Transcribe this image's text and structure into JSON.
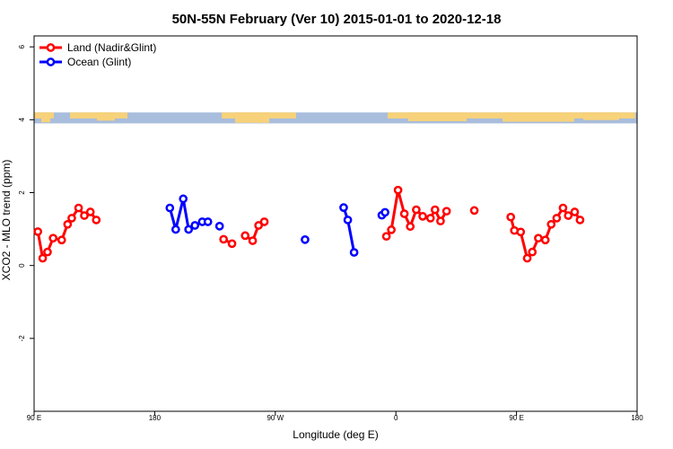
{
  "chart_data": {
    "type": "line",
    "title": "50N-55N February (Ver 10)   2015-01-01 to 2020-12-18",
    "xlabel": "Longitude (deg E)",
    "ylabel": "XCO2 - MLO trend (ppm)",
    "xlim": [
      90,
      540
    ],
    "ylim": [
      -4,
      6.3
    ],
    "x_ticks": [
      {
        "value": 90,
        "label": "90 E"
      },
      {
        "value": 180,
        "label": "180"
      },
      {
        "value": 270,
        "label": "90 W"
      },
      {
        "value": 360,
        "label": "0"
      },
      {
        "value": 450,
        "label": "90 E"
      },
      {
        "value": 540,
        "label": "180"
      }
    ],
    "y_ticks": [
      {
        "value": -2,
        "label": "-2"
      },
      {
        "value": 0,
        "label": "0"
      },
      {
        "value": 2,
        "label": "2"
      },
      {
        "value": 4,
        "label": "4"
      },
      {
        "value": 6,
        "label": "6"
      }
    ],
    "legend_position": "top-left",
    "land_ocean_strip": {
      "y_bottom": 3.9,
      "y_top": 4.2,
      "land_color": "#f7d27a",
      "ocean_color": "#a9bddc"
    },
    "series": [
      {
        "name": "Land (Nadir&Glint)",
        "color": "#ff0000",
        "segments": [
          [
            [
              92.8,
              0.93
            ],
            [
              96.4,
              0.2
            ],
            [
              100.0,
              0.37
            ],
            [
              104.2,
              0.75
            ],
            [
              110.6,
              0.7
            ],
            [
              115.0,
              1.13
            ],
            [
              118.1,
              1.3
            ],
            [
              123.2,
              1.58
            ],
            [
              127.5,
              1.37
            ],
            [
              132.0,
              1.47
            ],
            [
              136.4,
              1.25
            ]
          ],
          [
            [
              231.4,
              0.72
            ],
            [
              237.7,
              0.6
            ]
          ],
          [
            [
              247.5,
              0.82
            ],
            [
              253.1,
              0.68
            ],
            [
              257.5,
              1.1
            ],
            [
              261.8,
              1.2
            ]
          ],
          [
            [
              352.9,
              0.8
            ],
            [
              356.6,
              0.98
            ],
            [
              361.6,
              2.07
            ],
            [
              366.3,
              1.42
            ],
            [
              370.7,
              1.07
            ],
            [
              375.2,
              1.53
            ],
            [
              380.0,
              1.35
            ],
            [
              385.8,
              1.3
            ],
            [
              389.2,
              1.53
            ],
            [
              393.3,
              1.22
            ],
            [
              397.8,
              1.49
            ]
          ],
          [
            [
              418.5,
              1.51
            ]
          ],
          [
            [
              445.7,
              1.33
            ],
            [
              448.4,
              0.96
            ],
            [
              453.1,
              0.92
            ],
            [
              458.0,
              0.2
            ],
            [
              461.8,
              0.37
            ],
            [
              466.3,
              0.75
            ],
            [
              471.5,
              0.7
            ],
            [
              475.9,
              1.13
            ],
            [
              480.0,
              1.3
            ],
            [
              484.7,
              1.58
            ],
            [
              488.6,
              1.37
            ],
            [
              493.4,
              1.47
            ],
            [
              497.4,
              1.25
            ]
          ]
        ]
      },
      {
        "name": "Ocean (Glint)",
        "color": "#0000ff",
        "segments": [
          [
            [
              191.3,
              1.58
            ],
            [
              195.7,
              0.99
            ],
            [
              201.3,
              1.83
            ],
            [
              205.3,
              0.99
            ],
            [
              210.0,
              1.1
            ],
            [
              215.5,
              1.2
            ],
            [
              219.7,
              1.2
            ]
          ],
          [
            [
              228.4,
              1.08
            ]
          ],
          [
            [
              292.2,
              0.71
            ]
          ],
          [
            [
              321.0,
              1.59
            ],
            [
              324.1,
              1.25
            ],
            [
              328.8,
              0.36
            ]
          ],
          [
            [
              349.5,
              1.38
            ],
            [
              351.9,
              1.46
            ]
          ]
        ]
      }
    ]
  }
}
